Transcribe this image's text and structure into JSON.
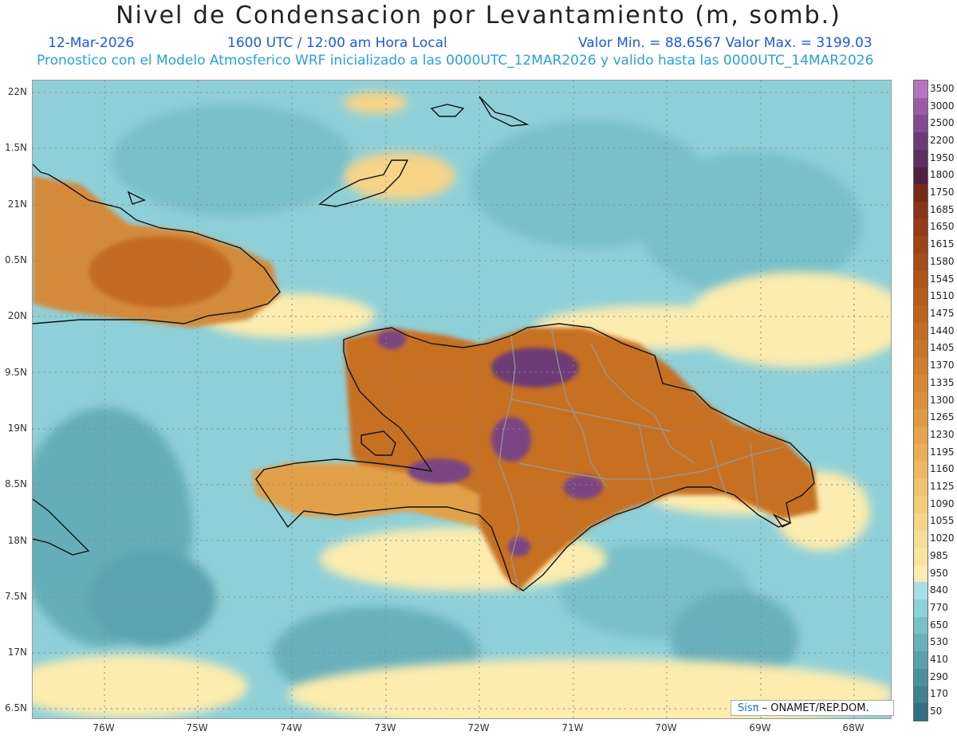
{
  "header": {
    "title": "Nivel de Condensacion por Levantamiento (m, somb.)",
    "date": "12-Mar-2026",
    "time": "1600 UTC / 12:00 am Hora Local",
    "minmax": "Valor Min. = 88.6567  Valor Max. = 3199.03",
    "model_info": "Pronostico con el Modelo Atmosferico WRF inicializado a las 0000UTC_12MAR2026 y valido hasta las  0000UTC_14MAR2026"
  },
  "axes": {
    "lat_labels": [
      "22N",
      "1.5N",
      "21N",
      "0.5N",
      "20N",
      "9.5N",
      "19N",
      "8.5N",
      "18N",
      "7.5N",
      "17N",
      "6.5N"
    ],
    "lon_labels": [
      "76W",
      "75W",
      "74W",
      "73W",
      "72W",
      "71W",
      "70W",
      "69W",
      "68W"
    ]
  },
  "colorbar": {
    "labels": [
      "3500",
      "3000",
      "2500",
      "2200",
      "1950",
      "1800",
      "1750",
      "1685",
      "1650",
      "1615",
      "1580",
      "1545",
      "1510",
      "1475",
      "1440",
      "1405",
      "1370",
      "1335",
      "1300",
      "1265",
      "1230",
      "1195",
      "1160",
      "1125",
      "1090",
      "1055",
      "1020",
      "985",
      "950",
      "840",
      "770",
      "650",
      "530",
      "410",
      "290",
      "170",
      "50"
    ],
    "colors": [
      "#b774c2",
      "#9b5aa6",
      "#844a8f",
      "#6d3a76",
      "#5e2f63",
      "#50203f",
      "#7a2a1a",
      "#8a3418",
      "#963b17",
      "#a04316",
      "#a84b16",
      "#b05317",
      "#b85b18",
      "#bf631b",
      "#c66b1f",
      "#cc7425",
      "#d27d2b",
      "#d78632",
      "#dd9039",
      "#e29a42",
      "#e6a44c",
      "#eaae57",
      "#eeb862",
      "#f1c26e",
      "#f4cb7b",
      "#f6d488",
      "#f8dd96",
      "#faE4a2",
      "#fcecaf",
      "#a6dfe6",
      "#8cd0d8",
      "#78c0ca",
      "#68b0bc",
      "#5aa0ad",
      "#4c909f",
      "#3f8091",
      "#326f82"
    ]
  },
  "credit": {
    "brand": "Sisπ",
    "text": "– ONAMET/REP.DOM."
  }
}
